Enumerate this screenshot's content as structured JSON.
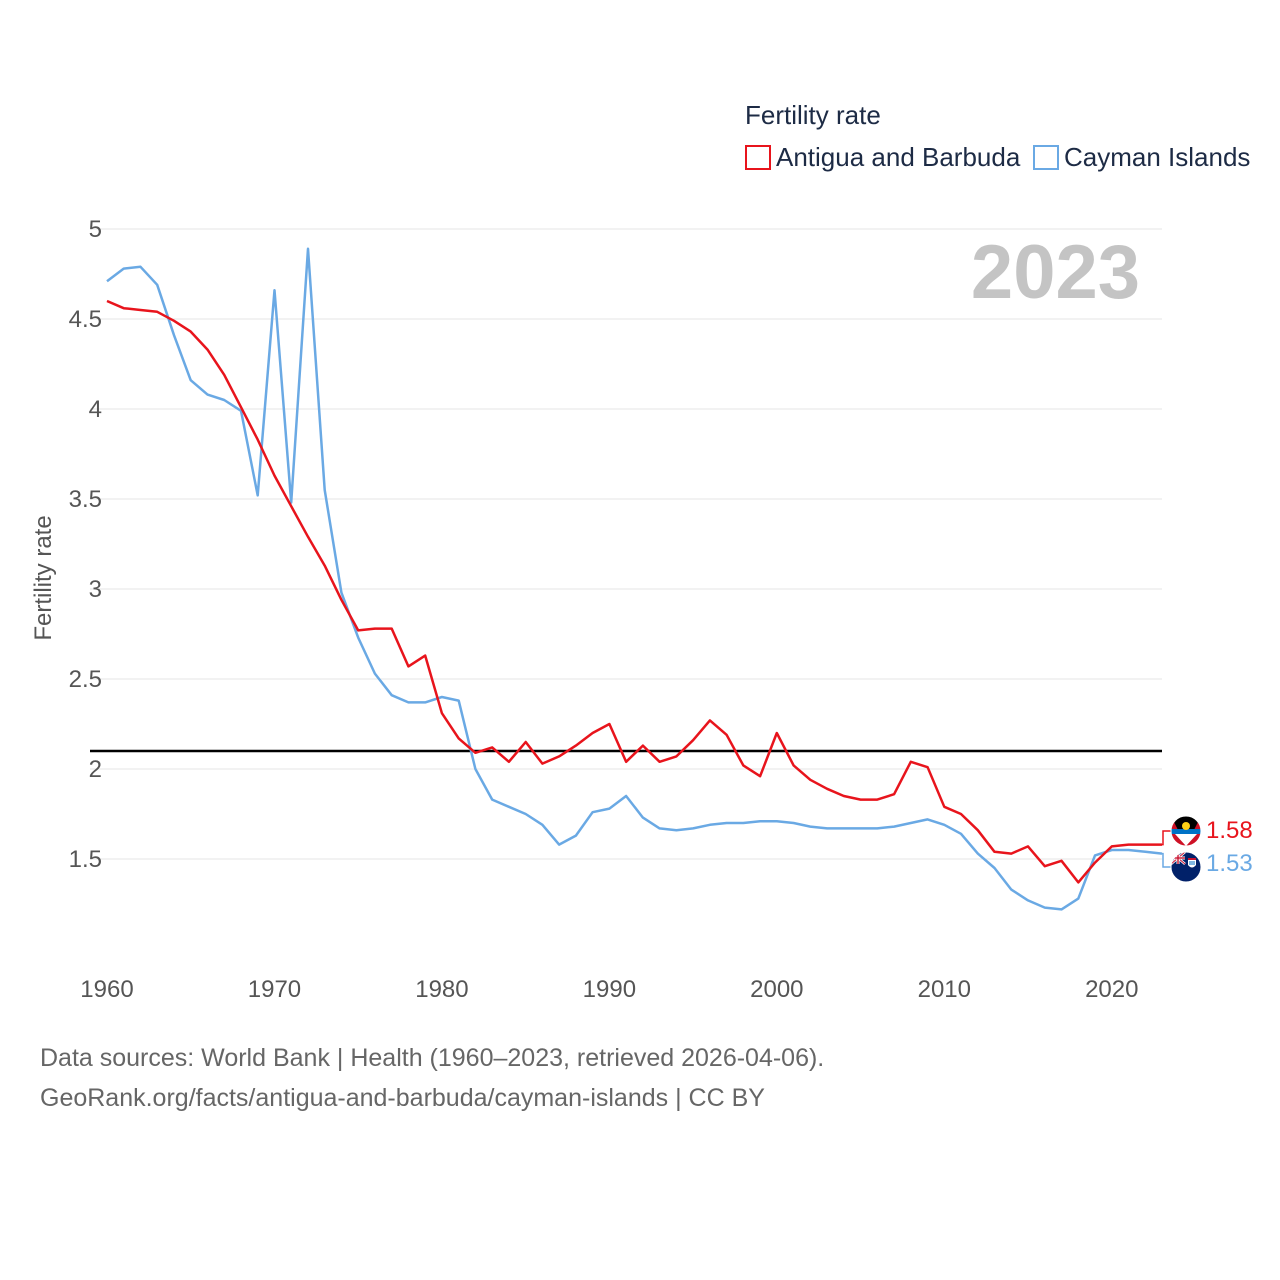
{
  "chart_data": {
    "type": "line",
    "title": "",
    "ylabel": "Fertility rate",
    "xlabel": "",
    "xlim": [
      1960,
      2023
    ],
    "ylim": [
      1.0,
      5.0
    ],
    "yticks": [
      1.5,
      2,
      2.5,
      3,
      3.5,
      4,
      4.5,
      5
    ],
    "ytick_labels": [
      "1.5",
      "2",
      "2.5",
      "3",
      "3.5",
      "4",
      "4.5",
      "5"
    ],
    "xticks": [
      1960,
      1970,
      1980,
      1990,
      2000,
      2010,
      2020
    ],
    "xtick_labels": [
      "1960",
      "1970",
      "1980",
      "1990",
      "2000",
      "2010",
      "2020"
    ],
    "grid": true,
    "reference_line": 2.1,
    "current_year_label": "2023",
    "legend": {
      "title": "Fertility rate",
      "position": "top-right",
      "entries": [
        "Antigua and Barbuda",
        "Cayman Islands"
      ]
    },
    "x": [
      1960,
      1961,
      1962,
      1963,
      1964,
      1965,
      1966,
      1967,
      1968,
      1969,
      1970,
      1971,
      1972,
      1973,
      1974,
      1975,
      1976,
      1977,
      1978,
      1979,
      1980,
      1981,
      1982,
      1983,
      1984,
      1985,
      1986,
      1987,
      1988,
      1989,
      1990,
      1991,
      1992,
      1993,
      1994,
      1995,
      1996,
      1997,
      1998,
      1999,
      2000,
      2001,
      2002,
      2003,
      2004,
      2005,
      2006,
      2007,
      2008,
      2009,
      2010,
      2011,
      2012,
      2013,
      2014,
      2015,
      2016,
      2017,
      2018,
      2019,
      2020,
      2021,
      2022,
      2023
    ],
    "series": [
      {
        "name": "Antigua and Barbuda",
        "color": "#e8141c",
        "end_label": "1.58",
        "values": [
          4.6,
          4.56,
          4.55,
          4.54,
          4.49,
          4.43,
          4.33,
          4.19,
          4.01,
          3.83,
          3.63,
          3.46,
          3.29,
          3.13,
          2.94,
          2.77,
          2.78,
          2.78,
          2.57,
          2.63,
          2.31,
          2.17,
          2.09,
          2.12,
          2.04,
          2.15,
          2.03,
          2.07,
          2.13,
          2.2,
          2.25,
          2.04,
          2.13,
          2.04,
          2.07,
          2.16,
          2.27,
          2.19,
          2.02,
          1.96,
          2.2,
          2.02,
          1.94,
          1.89,
          1.85,
          1.83,
          1.83,
          1.86,
          2.04,
          2.01,
          1.79,
          1.75,
          1.66,
          1.54,
          1.53,
          1.57,
          1.46,
          1.49,
          1.37,
          1.48,
          1.57,
          1.58,
          1.58,
          1.58
        ]
      },
      {
        "name": "Cayman Islands",
        "color": "#6aa9e4",
        "end_label": "1.53",
        "values": [
          4.71,
          4.78,
          4.79,
          4.69,
          4.41,
          4.16,
          4.08,
          4.05,
          3.99,
          3.52,
          4.66,
          3.48,
          4.89,
          3.55,
          2.98,
          2.73,
          2.53,
          2.41,
          2.37,
          2.37,
          2.4,
          2.38,
          2.0,
          1.83,
          1.79,
          1.75,
          1.69,
          1.58,
          1.63,
          1.76,
          1.78,
          1.85,
          1.73,
          1.67,
          1.66,
          1.67,
          1.69,
          1.7,
          1.7,
          1.71,
          1.71,
          1.7,
          1.68,
          1.67,
          1.67,
          1.67,
          1.67,
          1.68,
          1.7,
          1.72,
          1.69,
          1.64,
          1.53,
          1.45,
          1.33,
          1.27,
          1.23,
          1.22,
          1.28,
          1.52,
          1.55,
          1.55,
          1.54,
          1.53
        ]
      }
    ]
  },
  "footer": {
    "line1": "Data sources: World Bank | Health (1960–2023, retrieved 2026-04-06).",
    "line2": "GeoRank.org/facts/antigua-and-barbuda/cayman-islands | CC BY"
  },
  "icons": {
    "flag1": "antigua-and-barbuda-flag-icon",
    "flag2": "cayman-islands-flag-icon"
  }
}
